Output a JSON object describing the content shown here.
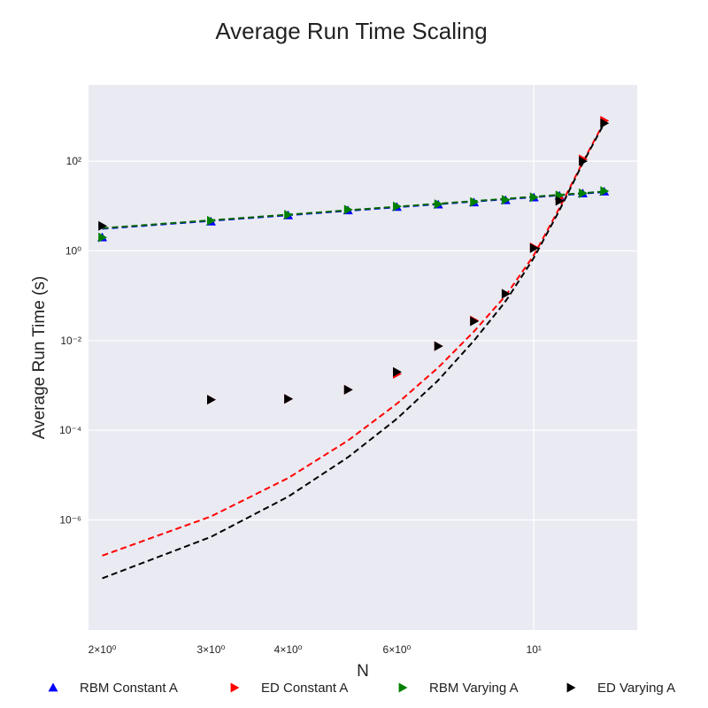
{
  "chart_data": {
    "type": "scatter",
    "title": "Average Run Time Scaling",
    "xlabel": "N",
    "ylabel": "Average Run Time (s)",
    "xscale": "log",
    "yscale": "log",
    "xlim": [
      1.9,
      14.7
    ],
    "ylim": [
      3.5e-09,
      5000
    ],
    "x_ticks": [
      {
        "value": 2,
        "label": "2×10⁰"
      },
      {
        "value": 3,
        "label": "3×10⁰"
      },
      {
        "value": 4,
        "label": "4×10⁰"
      },
      {
        "value": 6,
        "label": "6×10⁰"
      },
      {
        "value": 10,
        "label": "10¹"
      }
    ],
    "y_ticks": [
      {
        "value": 1e-06,
        "label": "10⁻⁶"
      },
      {
        "value": 0.0001,
        "label": "10⁻⁴"
      },
      {
        "value": 0.01,
        "label": "10⁻²"
      },
      {
        "value": 1,
        "label": "10⁰"
      },
      {
        "value": 100,
        "label": "10²"
      }
    ],
    "grid": true,
    "legend_position": "bottom",
    "series": [
      {
        "name": "RBM Constant A",
        "marker": "triangle-up",
        "color": "#0000ff",
        "x": [
          2,
          3,
          4,
          5,
          6,
          7,
          8,
          9,
          10,
          11,
          12,
          13
        ],
        "y": [
          2.0,
          4.5,
          6.2,
          8.0,
          9.5,
          10.8,
          12.0,
          13.5,
          15.5,
          17.0,
          19.0,
          21.0
        ],
        "fit_color": "#0000ff",
        "fit": {
          "kind": "power",
          "x": [
            2,
            13
          ],
          "y": [
            3.1,
            20.5
          ]
        }
      },
      {
        "name": "ED Constant A",
        "marker": "triangle-right",
        "color": "#ff0000",
        "x": [
          3,
          4,
          5,
          6,
          7,
          8,
          9,
          10,
          11,
          12,
          13
        ],
        "y": [
          0.00048,
          0.0005,
          0.0008,
          0.0018,
          0.0075,
          0.028,
          0.11,
          1.2,
          15,
          110,
          800
        ],
        "fit_color": "#ff0000",
        "fit": {
          "kind": "spline",
          "x": [
            2,
            3,
            4,
            5,
            6,
            7,
            8,
            9,
            10,
            11,
            12,
            13
          ],
          "y": [
            1.6e-07,
            1.2e-06,
            8.6e-06,
            5.9e-05,
            0.00039,
            0.0025,
            0.016,
            0.1,
            0.8,
            9,
            95,
            750
          ]
        }
      },
      {
        "name": "RBM Varying A",
        "marker": "triangle-right",
        "color": "#008000",
        "x": [
          2,
          3,
          4,
          5,
          6,
          7,
          8,
          9,
          10,
          11,
          12,
          13
        ],
        "y": [
          2.0,
          4.7,
          6.4,
          8.3,
          9.8,
          11.0,
          12.3,
          13.8,
          15.7,
          17.3,
          19.2,
          21.5
        ],
        "fit_color": "#006400",
        "fit": {
          "kind": "power",
          "x": [
            2,
            13
          ],
          "y": [
            3.2,
            21.0
          ]
        }
      },
      {
        "name": "ED Varying A",
        "marker": "triangle-right",
        "color": "#000000",
        "x": [
          2,
          3,
          4,
          5,
          6,
          7,
          8,
          9,
          10,
          11,
          12,
          13
        ],
        "y": [
          3.6,
          0.00048,
          0.0005,
          0.0008,
          0.002,
          0.0075,
          0.027,
          0.11,
          1.15,
          13,
          100,
          700
        ],
        "fit_color": "#000000",
        "fit": {
          "kind": "spline",
          "x": [
            2,
            3,
            4,
            5,
            6,
            7,
            8,
            9,
            10,
            11,
            12,
            13
          ],
          "y": [
            5e-08,
            4.2e-07,
            3.3e-06,
            2.5e-05,
            0.00018,
            0.0013,
            0.01,
            0.075,
            0.7,
            8,
            90,
            700
          ]
        }
      }
    ]
  }
}
